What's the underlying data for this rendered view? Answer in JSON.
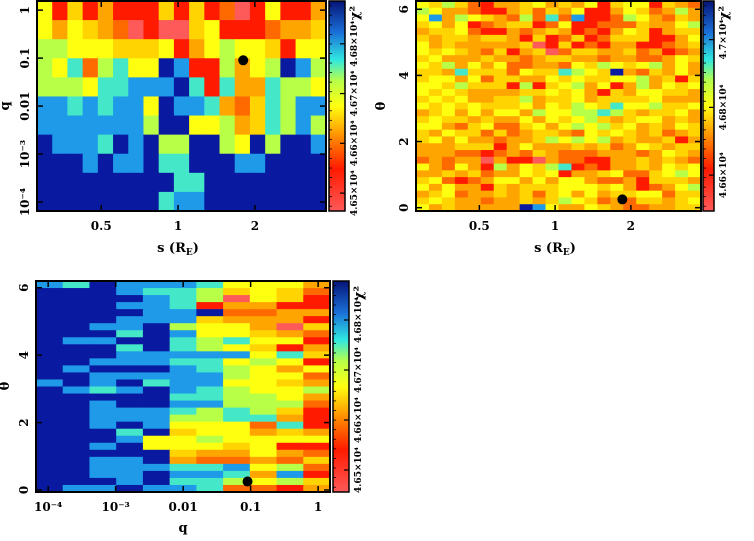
{
  "palette": [
    "#ff5a5a",
    "#ff1a00",
    "#ff6a00",
    "#ffa500",
    "#ffd400",
    "#ffff10",
    "#b8ff48",
    "#44e8c8",
    "#1e9ae8",
    "#0a1aa0"
  ],
  "chart_data": [
    {
      "type": "heatmap",
      "name": "chi2-s-q",
      "xlabel": "s (R",
      "xlabel_sub": "E",
      "xlabel_close": ")",
      "ylabel": "q",
      "xscale": "log",
      "yscale": "log",
      "xlim": [
        0.28,
        3.8
      ],
      "ylim": [
        6.5e-05,
        1.55
      ],
      "xticks": [
        {
          "v": 0.5,
          "label": "0.5"
        },
        {
          "v": 1,
          "label": "1"
        },
        {
          "v": 2,
          "label": "2"
        }
      ],
      "yticks": [
        {
          "v": 1,
          "label": "1"
        },
        {
          "v": 0.1,
          "label": "0.1"
        },
        {
          "v": 0.01,
          "label": "0.01"
        },
        {
          "v": 0.001,
          "label": "10⁻³"
        },
        {
          "v": 0.0001,
          "label": "10⁻⁴"
        }
      ],
      "colorbar": {
        "label": "χ²",
        "range": [
          46464,
          46886
        ],
        "ticks": [
          {
            "v": 46500,
            "label": "4.65×10⁴"
          },
          {
            "v": 46600,
            "label": "4.66×10⁴"
          },
          {
            "v": 46700,
            "label": "4.67×10⁴"
          },
          {
            "v": 46800,
            "label": "4.68×10⁴"
          }
        ]
      },
      "best_fit": {
        "x": 1.8,
        "y": 0.09
      },
      "levels_note": "digits 0 (lowest χ², red) to 9 (highest χ², dark blue); rows top to bottom",
      "grid": [
        "5141311141412015113",
        "5354320100451112334",
        "6655544451356554155",
        "6572675598116356986",
        "6665778889717337665",
        "8878788598873247688",
        "8888888699556347686",
        "9888798966996596998",
        "9998988977999889999",
        "9999999997799999999",
        "9999999978899999999"
      ]
    },
    {
      "type": "heatmap",
      "name": "chi2-s-theta",
      "xlabel": "s (R",
      "xlabel_sub": "E",
      "xlabel_close": ")",
      "ylabel": "θ",
      "xscale": "log",
      "yscale": "linear",
      "xlim": [
        0.28,
        3.8
      ],
      "ylim": [
        -0.1,
        6.25
      ],
      "xticks": [
        {
          "v": 0.5,
          "label": "0.5"
        },
        {
          "v": 1,
          "label": "1"
        },
        {
          "v": 2,
          "label": "2"
        }
      ],
      "yticks": [
        {
          "v": 0,
          "label": "0"
        },
        {
          "v": 2,
          "label": "2"
        },
        {
          "v": 4,
          "label": "4"
        },
        {
          "v": 6,
          "label": "6"
        }
      ],
      "colorbar": {
        "label": "χ²",
        "range": [
          46494,
          47114
        ],
        "ticks": [
          {
            "v": 46600,
            "label": "4.66×10⁴"
          },
          {
            "v": 46800,
            "label": "4.68×10⁴"
          },
          {
            "v": 47000,
            "label": "4.7×10⁴"
          }
        ]
      },
      "best_fit": {
        "x": 1.85,
        "y": 0.25
      },
      "grid": [
        "5464213345343514551432",
        "6533211342435113542363",
        "5836543262728112653243",
        "4535123441251122243356",
        "3445211323431213541344",
        "4344344314124124441135",
        "5343333340141213311234",
        "5454324134024433423123",
        "4533343323443323322354",
        "5463535223325465456353",
        "4437444254476549324353",
        "4553524433545445563414",
        "5546444161456351363545",
        "5454333344545314355443",
        "4545334463445344445333",
        "5454544453546547556445",
        "3453535536556676434453",
        "4544343353545643455343",
        "5532452245356564534354",
        "4354424234432545434234",
        "4535332334656563433413",
        "3334441353334342354344",
        "3332212324322233323543",
        "2323303110322113343432",
        "5325316354671213343545",
        "3343423354513345224565",
        "4521235535355322314443",
        "5353314344455545312356",
        "3452334342453534455244",
        "4543323343465423244345",
        "5343333398533543223344"
      ]
    },
    {
      "type": "heatmap",
      "name": "chi2-q-theta",
      "xlabel": "q",
      "ylabel": "θ",
      "xscale": "log",
      "yscale": "linear",
      "xlim": [
        6.6e-05,
        1.5
      ],
      "ylim": [
        -0.06,
        6.2
      ],
      "xticks": [
        {
          "v": 0.0001,
          "label": "10⁻⁴"
        },
        {
          "v": 0.001,
          "label": "10⁻³"
        },
        {
          "v": 0.01,
          "label": "0.01"
        },
        {
          "v": 0.1,
          "label": "0.1"
        },
        {
          "v": 1,
          "label": "1"
        }
      ],
      "yticks": [
        {
          "v": 0,
          "label": "0"
        },
        {
          "v": 2,
          "label": "2"
        },
        {
          "v": 4,
          "label": "4"
        },
        {
          "v": 6,
          "label": "6"
        }
      ],
      "colorbar": {
        "label": "χ²",
        "range": [
          46456,
          46878
        ],
        "ticks": [
          {
            "v": 46500,
            "label": "4.65×10⁴"
          },
          {
            "v": 46600,
            "label": "4.66×10⁴"
          },
          {
            "v": 46700,
            "label": "4.67×10⁴"
          },
          {
            "v": 46800,
            "label": "4.68×10⁴"
          }
        ]
      },
      "best_fit": {
        "x": 0.09,
        "y": 0.25
      },
      "grid": [
        "87988875553",
        "99987764542",
        "99998760541",
        "99988713311",
        "99998892233",
        "99988843331",
        "99889655304",
        "99979855432",
        "98899767551",
        "99979765413",
        "99988888574",
        "99888775651",
        "98999876535",
        "99888886552",
        "89897885543",
        "98789876556",
        "99999776653",
        "99899886662",
        "99888767641",
        "99888667731",
        "99898555271",
        "99979455343",
        "99985565555",
        "99895554511",
        "99999433532",
        "99889322324",
        "99888778562",
        "99889887381",
        "99989776564",
        "98898872213"
      ]
    }
  ]
}
